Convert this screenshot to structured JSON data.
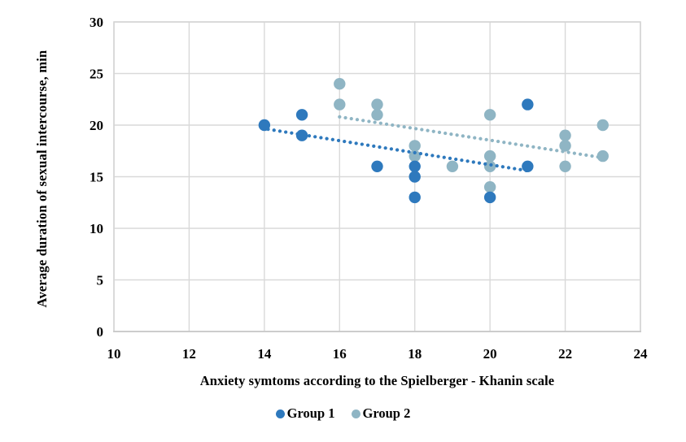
{
  "chart_data": {
    "type": "scatter",
    "title": "",
    "xlabel": "Anxiety symtoms according to the Spielberger - Khanin scale",
    "ylabel": "Average duration of sexual intercourse, min",
    "xlim": [
      10,
      24
    ],
    "ylim": [
      0,
      30
    ],
    "x_ticks": [
      10,
      12,
      14,
      16,
      18,
      20,
      22,
      24
    ],
    "y_ticks": [
      0,
      5,
      10,
      15,
      20,
      25,
      30
    ],
    "grid": true,
    "legend_position": "bottom",
    "series": [
      {
        "name": "Group 1",
        "color": "#2E79BD",
        "points": [
          [
            14,
            20
          ],
          [
            15,
            19
          ],
          [
            15,
            21
          ],
          [
            17,
            16
          ],
          [
            18,
            13
          ],
          [
            18,
            15
          ],
          [
            18,
            16
          ],
          [
            20,
            13
          ],
          [
            21,
            16
          ],
          [
            21,
            22
          ]
        ],
        "trendline": {
          "style": "dotted",
          "from": [
            14.1,
            19.6
          ],
          "to": [
            21.05,
            15.55
          ]
        }
      },
      {
        "name": "Group 2",
        "color": "#8FB5C4",
        "points": [
          [
            16,
            22
          ],
          [
            16,
            24
          ],
          [
            17,
            21
          ],
          [
            17,
            22
          ],
          [
            18,
            17
          ],
          [
            18,
            18
          ],
          [
            19,
            16
          ],
          [
            20,
            14
          ],
          [
            20,
            16
          ],
          [
            20,
            17
          ],
          [
            20,
            21
          ],
          [
            22,
            16
          ],
          [
            22,
            18
          ],
          [
            22,
            19
          ],
          [
            23,
            17
          ],
          [
            23,
            20
          ]
        ],
        "trendline": {
          "style": "dotted",
          "from": [
            16.0,
            20.8
          ],
          "to": [
            22.9,
            16.9
          ]
        }
      }
    ]
  },
  "colors": {
    "grid": "#D9D9D9",
    "border": "#D5D5D5",
    "axis_bottom": "#C9C9C9",
    "text": "#000000",
    "background": "#FFFFFF"
  }
}
